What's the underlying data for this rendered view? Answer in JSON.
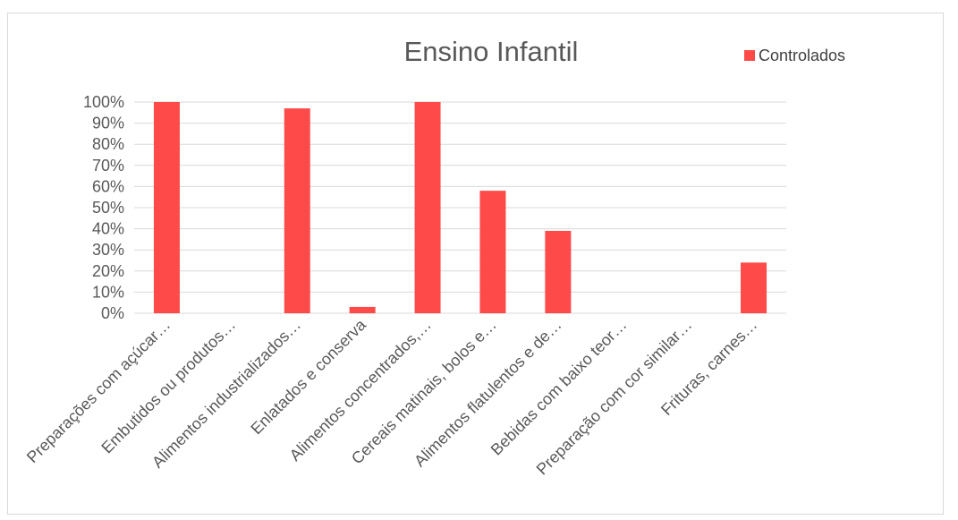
{
  "chart_data": {
    "type": "bar",
    "title": "Ensino Infantil",
    "xlabel": "",
    "ylabel": "",
    "ylim": [
      0,
      100
    ],
    "y_ticks": [
      "0%",
      "10%",
      "20%",
      "30%",
      "40%",
      "50%",
      "60%",
      "70%",
      "80%",
      "90%",
      "100%"
    ],
    "grid": true,
    "legend_position": "top-right",
    "categories": [
      "Preparações com açúcar…",
      "Embutidos ou produtos…",
      "Alimentos industrializados…",
      "Enlatados e conserva",
      "Alimentos concentrados,…",
      "Cereais matinais, bolos e…",
      "Alimentos flatulentos e de…",
      "Bebidas com baixo teor…",
      "Preparação com cor similar…",
      "Frituras, carnes…"
    ],
    "series": [
      {
        "name": "Controlados",
        "color": "#ff4a4a",
        "values": [
          100,
          0,
          97,
          3,
          100,
          58,
          39,
          0,
          0,
          24
        ]
      }
    ]
  }
}
